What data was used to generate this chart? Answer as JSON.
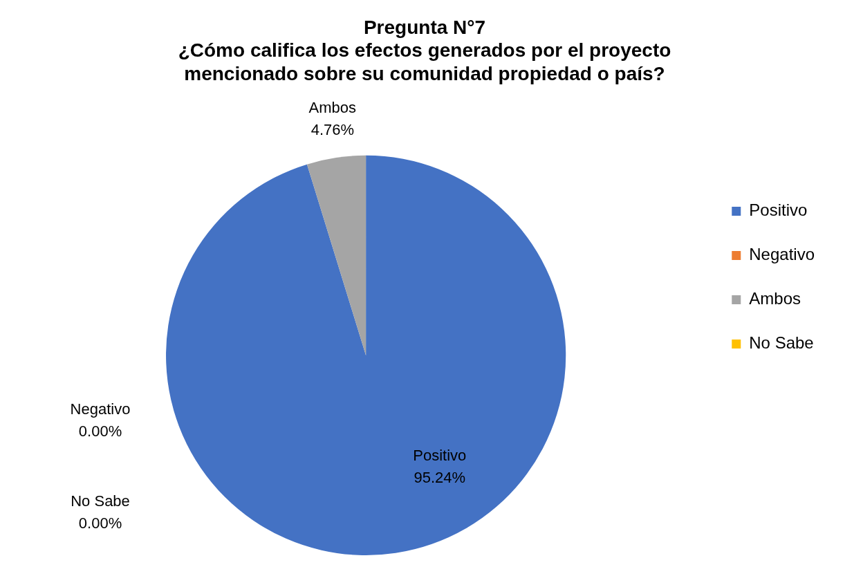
{
  "chart_data": {
    "type": "pie",
    "title": "Pregunta N°7",
    "subtitle": "¿Cómo califica los efectos generados por el proyecto mencionado sobre su comunidad propiedad o país?",
    "categories": [
      "Positivo",
      "Negativo",
      "Ambos",
      "No Sabe"
    ],
    "values": [
      95.24,
      0,
      4.76,
      0
    ],
    "colors": [
      "#4472c4",
      "#ed7d31",
      "#a5a5a5",
      "#ffc000"
    ],
    "value_labels": [
      "95.24%",
      "0.00%",
      "4.76%",
      "0.00%"
    ],
    "legend": "right"
  }
}
